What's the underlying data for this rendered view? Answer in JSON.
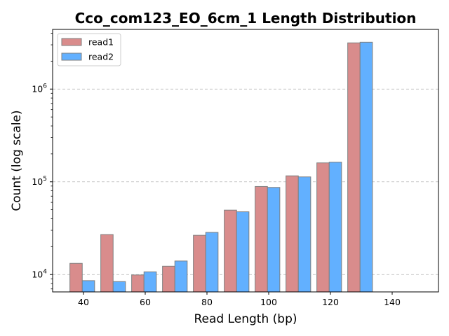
{
  "chart_data": {
    "type": "bar",
    "title": "Cco_com123_EO_6cm_1 Length Distribution",
    "xlabel": "Read Length (bp)",
    "ylabel": "Count (log scale)",
    "yscale": "log",
    "xlim": [
      30,
      155
    ],
    "ylim": [
      6500,
      4400000
    ],
    "x_ticks": [
      40,
      60,
      80,
      100,
      120,
      140
    ],
    "y_ticks": [
      {
        "value": 10000,
        "label": "10^4"
      },
      {
        "value": 100000,
        "label": "10^5"
      },
      {
        "value": 1000000,
        "label": "10^6"
      }
    ],
    "grid": "y-major-dashed",
    "legend_position": "top-left",
    "categories": [
      40,
      50,
      60,
      70,
      80,
      90,
      100,
      110,
      120,
      130,
      140
    ],
    "series": [
      {
        "name": "read1",
        "color": "#d98c8c",
        "values": [
          13200,
          27000,
          9900,
          12300,
          26500,
          49500,
          89000,
          116000,
          160000,
          3150000,
          0
        ]
      },
      {
        "name": "read2",
        "color": "#62b0ff",
        "values": [
          8600,
          8400,
          10700,
          14000,
          28500,
          47500,
          87000,
          113000,
          163000,
          3200000,
          0
        ]
      }
    ]
  }
}
